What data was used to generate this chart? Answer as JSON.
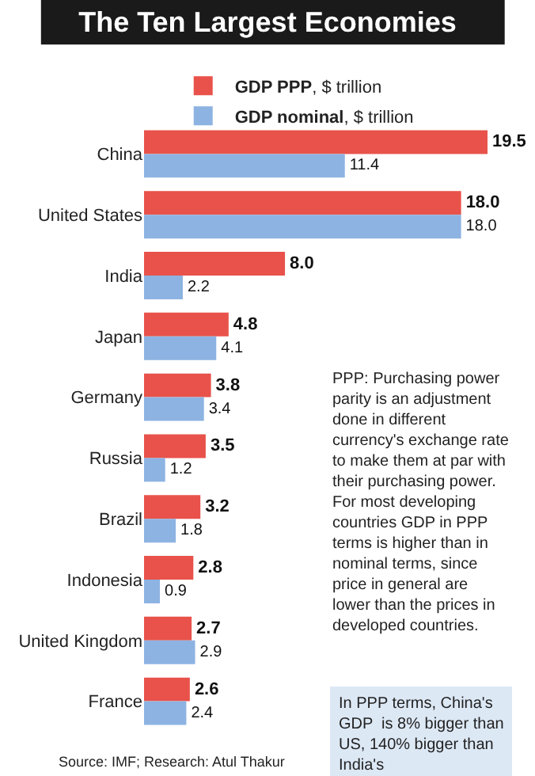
{
  "chart_data": {
    "type": "bar",
    "orientation": "horizontal",
    "title": "The Ten Largest Economies",
    "categories": [
      "China",
      "United States",
      "India",
      "Japan",
      "Germany",
      "Russia",
      "Brazil",
      "Indonesia",
      "United Kingdom",
      "France"
    ],
    "series": [
      {
        "name": "GDP PPP, $ trillion",
        "color": "#e8524a",
        "values": [
          19.5,
          18.0,
          8.0,
          4.8,
          3.8,
          3.5,
          3.2,
          2.8,
          2.7,
          2.6
        ],
        "value_labels": [
          "19.5",
          "18.0",
          "8.0",
          "4.8",
          "3.8",
          "3.5",
          "3.2",
          "2.8",
          "2.7",
          "2.6"
        ]
      },
      {
        "name": "GDP nominal, $ trillion",
        "color": "#8db3e2",
        "values": [
          11.4,
          18.0,
          2.2,
          4.1,
          3.4,
          1.2,
          1.8,
          0.9,
          2.9,
          2.4
        ],
        "value_labels": [
          "11.4",
          "18.0",
          "2.2",
          "4.1",
          "3.4",
          "1.2",
          "1.8",
          "0.9",
          "2.9",
          "2.4"
        ]
      }
    ],
    "xlim": [
      0,
      19.5
    ],
    "tick_labels": "y",
    "legend": "top",
    "annotations": [
      "PPP: Purchasing power parity is an adjustment done in different currency's exchange rate to make them at par with their purchasing power. For most developing countries GDP in PPP terms is higher than in nominal terms, since price in general are lower than the prices in developed countries.",
      "In PPP terms, China's GDP  is 8% bigger than US, 140% bigger than India's",
      "Source: IMF; Research: Atul Thakur"
    ]
  }
}
